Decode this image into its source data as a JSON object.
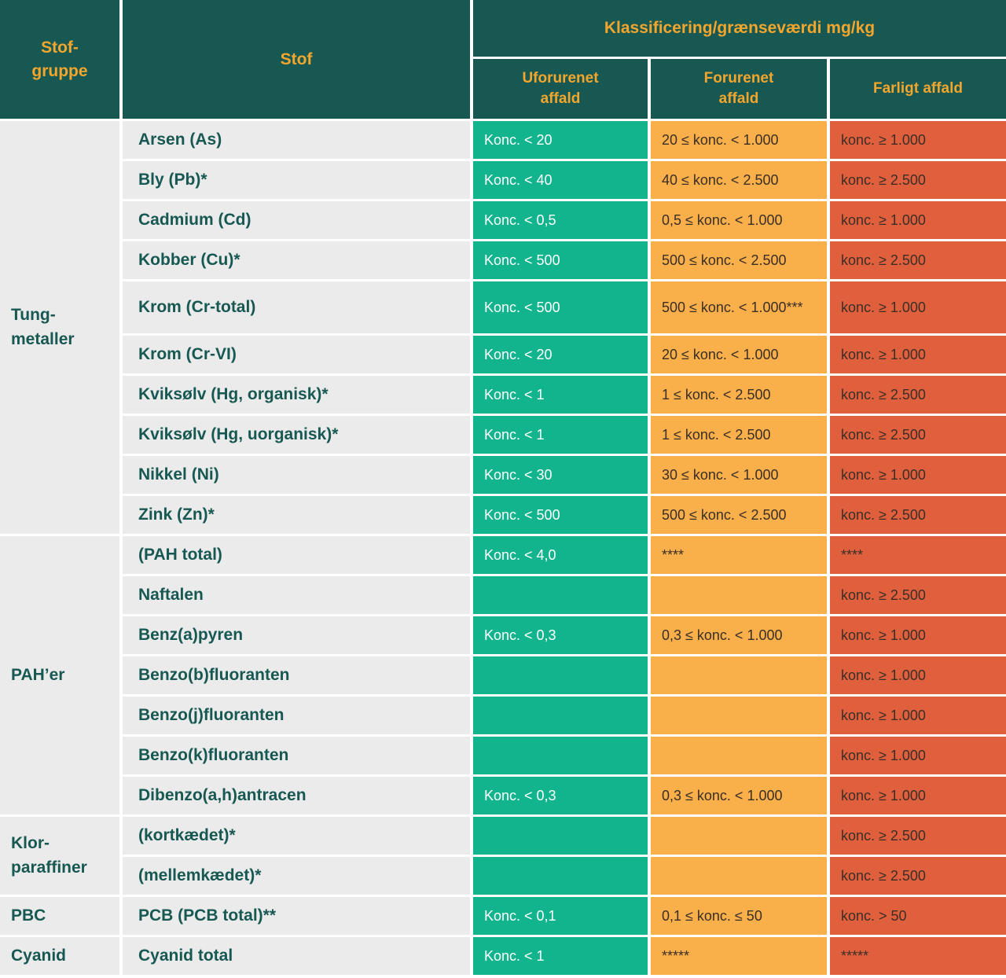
{
  "header": {
    "stof_gruppe": "Stof-\ngruppe",
    "stof": "Stof",
    "klassificering": "Klassificering/grænseværdi mg/kg",
    "uforurenet": "Uforurenet\naffald",
    "forurenet": "Forurenet\naffald",
    "farligt": "Farligt affald"
  },
  "groups": [
    {
      "label": "Tung-\nmetaller",
      "span": 10
    },
    {
      "label": "PAH’er",
      "span": 7
    },
    {
      "label": "Klor-\nparaffiner",
      "span": 2
    },
    {
      "label": "PBC",
      "span": 1
    },
    {
      "label": "Cyanid",
      "span": 1
    }
  ],
  "rows": [
    {
      "stof": "Arsen (As)",
      "uforurenet": "Konc. < 20",
      "forurenet": "20 ≤ konc. < 1.000",
      "farligt": "konc. ≥ 1.000"
    },
    {
      "stof": "Bly (Pb)*",
      "uforurenet": "Konc. < 40",
      "forurenet": "40 ≤ konc. < 2.500",
      "farligt": "konc. ≥ 2.500"
    },
    {
      "stof": "Cadmium (Cd)",
      "uforurenet": "Konc. < 0,5",
      "forurenet": "0,5 ≤ konc. < 1.000",
      "farligt": "konc. ≥ 1.000"
    },
    {
      "stof": "Kobber (Cu)*",
      "uforurenet": "Konc. < 500",
      "forurenet": "500 ≤ konc. < 2.500",
      "farligt": "konc. ≥ 2.500"
    },
    {
      "stof": "Krom (Cr-total)",
      "uforurenet": "Konc. < 500",
      "forurenet": "500 ≤ konc. < 1.000***",
      "farligt": "konc. ≥ 1.000"
    },
    {
      "stof": "Krom (Cr-VI)",
      "uforurenet": "Konc. < 20",
      "forurenet": "20 ≤ konc. < 1.000",
      "farligt": "konc. ≥ 1.000"
    },
    {
      "stof": "Kviksølv (Hg, organisk)*",
      "uforurenet": "Konc. < 1",
      "forurenet": "1 ≤ konc. < 2.500",
      "farligt": "konc. ≥ 2.500"
    },
    {
      "stof": "Kviksølv (Hg, uorganisk)*",
      "uforurenet": "Konc. < 1",
      "forurenet": "1 ≤ konc. < 2.500",
      "farligt": "konc. ≥ 2.500"
    },
    {
      "stof": "Nikkel (Ni)",
      "uforurenet": "Konc. < 30",
      "forurenet": "30 ≤ konc. < 1.000",
      "farligt": "konc. ≥ 1.000"
    },
    {
      "stof": "Zink (Zn)*",
      "uforurenet": "Konc. < 500",
      "forurenet": "500 ≤ konc. < 2.500",
      "farligt": "konc. ≥ 2.500"
    },
    {
      "stof": "(PAH total)",
      "uforurenet": "Konc. < 4,0",
      "forurenet": "****",
      "farligt": "****"
    },
    {
      "stof": "Naftalen",
      "uforurenet": "",
      "forurenet": "",
      "farligt": "konc. ≥ 2.500"
    },
    {
      "stof": "Benz(a)pyren",
      "uforurenet": "Konc. < 0,3",
      "forurenet": "0,3 ≤ konc. < 1.000",
      "farligt": "konc. ≥ 1.000"
    },
    {
      "stof": "Benzo(b)fluoranten",
      "uforurenet": "",
      "forurenet": "",
      "farligt": "konc. ≥ 1.000"
    },
    {
      "stof": "Benzo(j)fluoranten",
      "uforurenet": "",
      "forurenet": "",
      "farligt": "konc. ≥ 1.000"
    },
    {
      "stof": "Benzo(k)fluoranten",
      "uforurenet": "",
      "forurenet": "",
      "farligt": "konc. ≥ 1.000"
    },
    {
      "stof": "Dibenzo(a,h)antracen",
      "uforurenet": "Konc. < 0,3",
      "forurenet": "0,3 ≤ konc. < 1.000",
      "farligt": "konc. ≥ 1.000"
    },
    {
      "stof": "(kortkædet)*",
      "uforurenet": "",
      "forurenet": "",
      "farligt": "konc. ≥ 2.500"
    },
    {
      "stof": "(mellemkædet)*",
      "uforurenet": "",
      "forurenet": "",
      "farligt": "konc. ≥ 2.500"
    },
    {
      "stof": "PCB (PCB total)**",
      "uforurenet": "Konc. < 0,1",
      "forurenet": "0,1 ≤ konc. ≤ 50",
      "farligt": "konc. > 50"
    },
    {
      "stof": "Cyanid total",
      "uforurenet": "Konc. < 1",
      "forurenet": "*****",
      "farligt": "*****"
    }
  ],
  "colors": {
    "header_bg": "#175852",
    "header_text": "#f3a62e",
    "row_bg": "#ebebeb",
    "row_text": "#175852",
    "green": "#12b48d",
    "yellow": "#f9b04b",
    "red": "#e0603e",
    "dark_on_warm": "#3a2e26",
    "white": "#ffffff"
  }
}
